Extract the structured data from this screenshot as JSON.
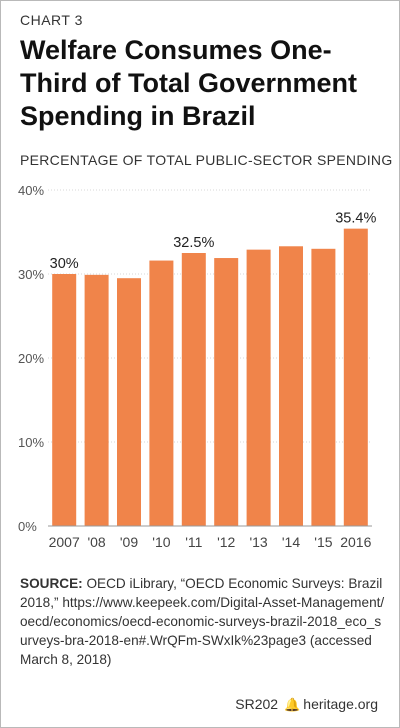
{
  "label": "CHART 3",
  "title": "Welfare Consumes One-Third of Total Government Spending in Brazil",
  "source_heading": "SOURCE:",
  "source_text": " OECD iLibrary, “OECD Economic Surveys: Brazil 2018,” https://www.keepeek.com/Digital-Asset-Management/oecd/economics/oecd-economic-surveys-brazil-2018_eco_surveys-bra-2018-en#.WrQFm-SWxIk%23page3 (accessed March 8, 2018)",
  "footer": {
    "report": "SR202",
    "site": "heritage.org",
    "bell_icon": "liberty-bell-icon"
  },
  "colors": {
    "bar": "#f0844a",
    "axis": "#9a9a9a",
    "grid": "#d7d7d7"
  },
  "chart_data": {
    "type": "bar",
    "title": "PERCENTAGE OF TOTAL PUBLIC-SECTOR SPENDING",
    "categories": [
      "2007",
      "'08",
      "'09",
      "'10",
      "'11",
      "'12",
      "'13",
      "'14",
      "'15",
      "2016"
    ],
    "values": [
      30,
      29.9,
      29.5,
      31.6,
      32.5,
      31.9,
      32.9,
      33.3,
      33.0,
      35.4
    ],
    "data_labels": {
      "0": "30%",
      "4": "32.5%",
      "9": "35.4%"
    },
    "ylim": [
      0,
      40
    ],
    "yticks": [
      0,
      10,
      20,
      30,
      40
    ],
    "ytick_labels": [
      "0%",
      "10%",
      "20%",
      "30%",
      "40%"
    ],
    "grid": true
  }
}
